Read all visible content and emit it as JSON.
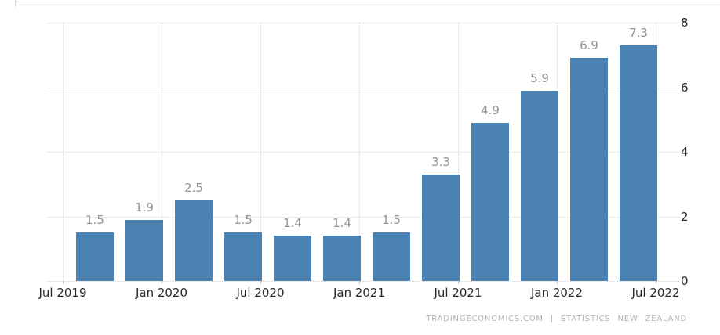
{
  "chart_data": {
    "type": "bar",
    "title": "",
    "values": [
      1.5,
      1.9,
      2.5,
      1.5,
      1.4,
      1.4,
      1.5,
      3.3,
      4.9,
      5.9,
      6.9,
      7.3
    ],
    "bar_value_labels": [
      "1.5",
      "1.9",
      "2.5",
      "1.5",
      "1.4",
      "1.4",
      "1.5",
      "3.3",
      "4.9",
      "5.9",
      "6.9",
      "7.3"
    ],
    "x_tick_labels": [
      "Jul 2019",
      "Jan 2020",
      "Jul 2020",
      "Jan 2021",
      "Jul 2021",
      "Jan 2022",
      "Jul 2022"
    ],
    "y_ticks": [
      0,
      2,
      4,
      6,
      8
    ],
    "ylim": [
      0,
      8
    ],
    "grid": true,
    "legend": "none",
    "colors": {
      "bar": "#4a82b4",
      "gridline": "#d6d6d6",
      "value_label": "#949494",
      "axis_label": "#2a2a2a",
      "tick": "#c6c6c6"
    }
  },
  "footer": {
    "attribution": "TRADINGECONOMICS.COM | STATISTICS NEW ZEALAND"
  }
}
